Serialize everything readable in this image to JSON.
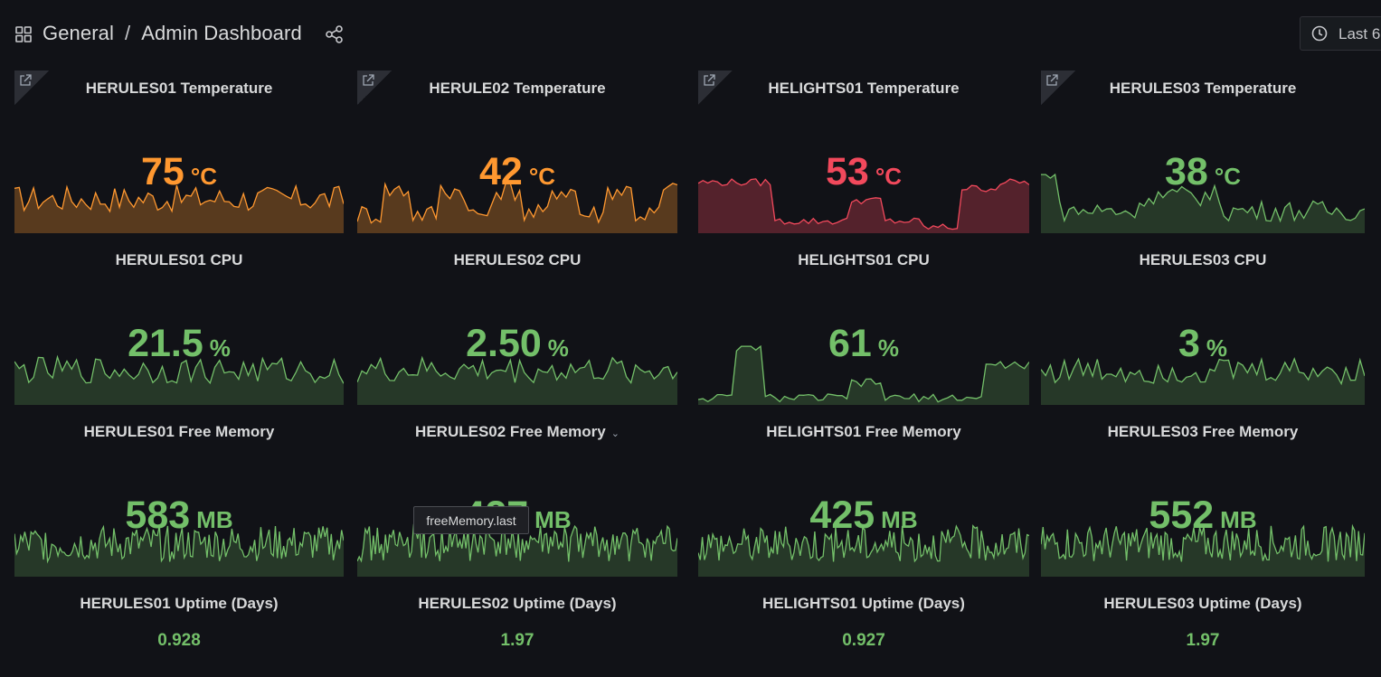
{
  "header": {
    "breadcrumb_folder": "General",
    "breadcrumb_sep": "/",
    "breadcrumb_dashboard": "Admin Dashboard",
    "time_range_label": "Last 6"
  },
  "colors": {
    "orange": "#ff9830",
    "red": "#f2495c",
    "green": "#73bf69"
  },
  "tooltip": {
    "text": "freeMemory.last"
  },
  "panels": [
    {
      "title": "HERULES01 Temperature",
      "value": "75",
      "unit": "°C",
      "color": "#ff9830"
    },
    {
      "title": "HERULE02 Temperature",
      "value": "42",
      "unit": "°C",
      "color": "#ff9830"
    },
    {
      "title": "HELIGHTS01 Temperature",
      "value": "53",
      "unit": "°C",
      "color": "#f2495c"
    },
    {
      "title": "HERULES03 Temperature",
      "value": "38",
      "unit": "°C",
      "color": "#73bf69"
    },
    {
      "title": "HERULES01 CPU",
      "value": "21.5",
      "unit": "%",
      "color": "#73bf69"
    },
    {
      "title": "HERULES02 CPU",
      "value": "2.50",
      "unit": "%",
      "color": "#73bf69"
    },
    {
      "title": "HELIGHTS01 CPU",
      "value": "61",
      "unit": "%",
      "color": "#73bf69"
    },
    {
      "title": "HERULES03 CPU",
      "value": "3",
      "unit": "%",
      "color": "#73bf69"
    },
    {
      "title": "HERULES01 Free Memory",
      "value": "583",
      "unit": "MB",
      "color": "#73bf69"
    },
    {
      "title": "HERULES02 Free Memory",
      "value": "427",
      "unit": "MB",
      "color": "#73bf69"
    },
    {
      "title": "HELIGHTS01 Free Memory",
      "value": "425",
      "unit": "MB",
      "color": "#73bf69"
    },
    {
      "title": "HERULES03 Free Memory",
      "value": "552",
      "unit": "MB",
      "color": "#73bf69"
    },
    {
      "title": "HERULES01 Uptime (Days)",
      "value": "0.928",
      "unit": "",
      "color": "#73bf69"
    },
    {
      "title": "HERULES02 Uptime (Days)",
      "value": "1.97",
      "unit": "",
      "color": "#73bf69"
    },
    {
      "title": "HELIGHTS01 Uptime (Days)",
      "value": "0.927",
      "unit": "",
      "color": "#73bf69"
    },
    {
      "title": "HERULES03 Uptime (Days)",
      "value": "1.97",
      "unit": "",
      "color": "#73bf69"
    }
  ]
}
